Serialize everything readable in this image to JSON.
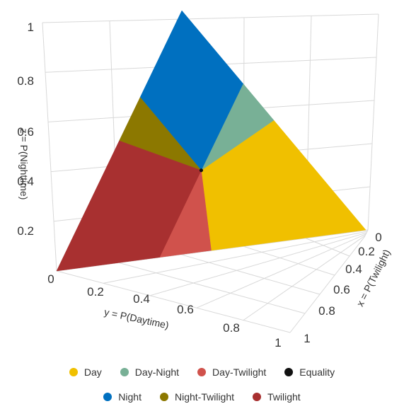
{
  "chart_data": {
    "type": "ternary-3d-surface",
    "axes": {
      "x": {
        "label": "x = P(Twilight)",
        "ticks": [
          "0",
          "0.2",
          "0.4",
          "0.6",
          "0.8",
          "1"
        ],
        "range": [
          0,
          1
        ]
      },
      "y": {
        "label": "y = P(Daytime)",
        "ticks": [
          "0",
          "0.2",
          "0.4",
          "0.6",
          "0.8",
          "1"
        ],
        "range": [
          0,
          1
        ]
      },
      "z": {
        "label": "z = P(Nighttime)",
        "ticks": [
          "0.2",
          "0.4",
          "0.6",
          "0.8",
          "1"
        ],
        "range": [
          0,
          1
        ]
      }
    },
    "grid": true,
    "regions": [
      {
        "name": "Day",
        "color": "#f0c000",
        "vertices": [
          [
            0,
            1,
            0
          ],
          [
            0,
            0.5,
            0.5
          ],
          [
            0.333,
            0.333,
            0.333
          ],
          [
            0.5,
            0.5,
            0
          ]
        ]
      },
      {
        "name": "Day-Night",
        "color": "#78b096",
        "vertices": [
          [
            0,
            0.5,
            0.5
          ],
          [
            0,
            0.333,
            0.667
          ],
          [
            0.333,
            0.333,
            0.333
          ]
        ]
      },
      {
        "name": "Day-Twilight",
        "color": "#d0524c",
        "vertices": [
          [
            0.5,
            0.5,
            0
          ],
          [
            0.333,
            0.333,
            0.333
          ],
          [
            0.667,
            0.333,
            0
          ]
        ]
      },
      {
        "name": "Equality",
        "color": "#111111",
        "vertices": [
          [
            0.333,
            0.333,
            0.333
          ]
        ]
      },
      {
        "name": "Night",
        "color": "#0070c0",
        "vertices": [
          [
            0,
            0,
            1
          ],
          [
            0,
            0.333,
            0.667
          ],
          [
            0.333,
            0.333,
            0.333
          ],
          [
            0.333,
            0,
            0.667
          ]
        ]
      },
      {
        "name": "Night-Twilight",
        "color": "#8c7800",
        "vertices": [
          [
            0.333,
            0,
            0.667
          ],
          [
            0.333,
            0.333,
            0.333
          ],
          [
            0.5,
            0,
            0.5
          ]
        ]
      },
      {
        "name": "Twilight",
        "color": "#a83030",
        "vertices": [
          [
            0.333,
            0.333,
            0.333
          ],
          [
            0.667,
            0.333,
            0
          ],
          [
            1,
            0,
            0
          ],
          [
            0.5,
            0,
            0.5
          ]
        ]
      }
    ],
    "legend": [
      [
        "Day",
        "Day-Night",
        "Day-Twilight",
        "Equality"
      ],
      [
        "Night",
        "Night-Twilight",
        "Twilight"
      ]
    ],
    "legend_placement": "bottom"
  }
}
